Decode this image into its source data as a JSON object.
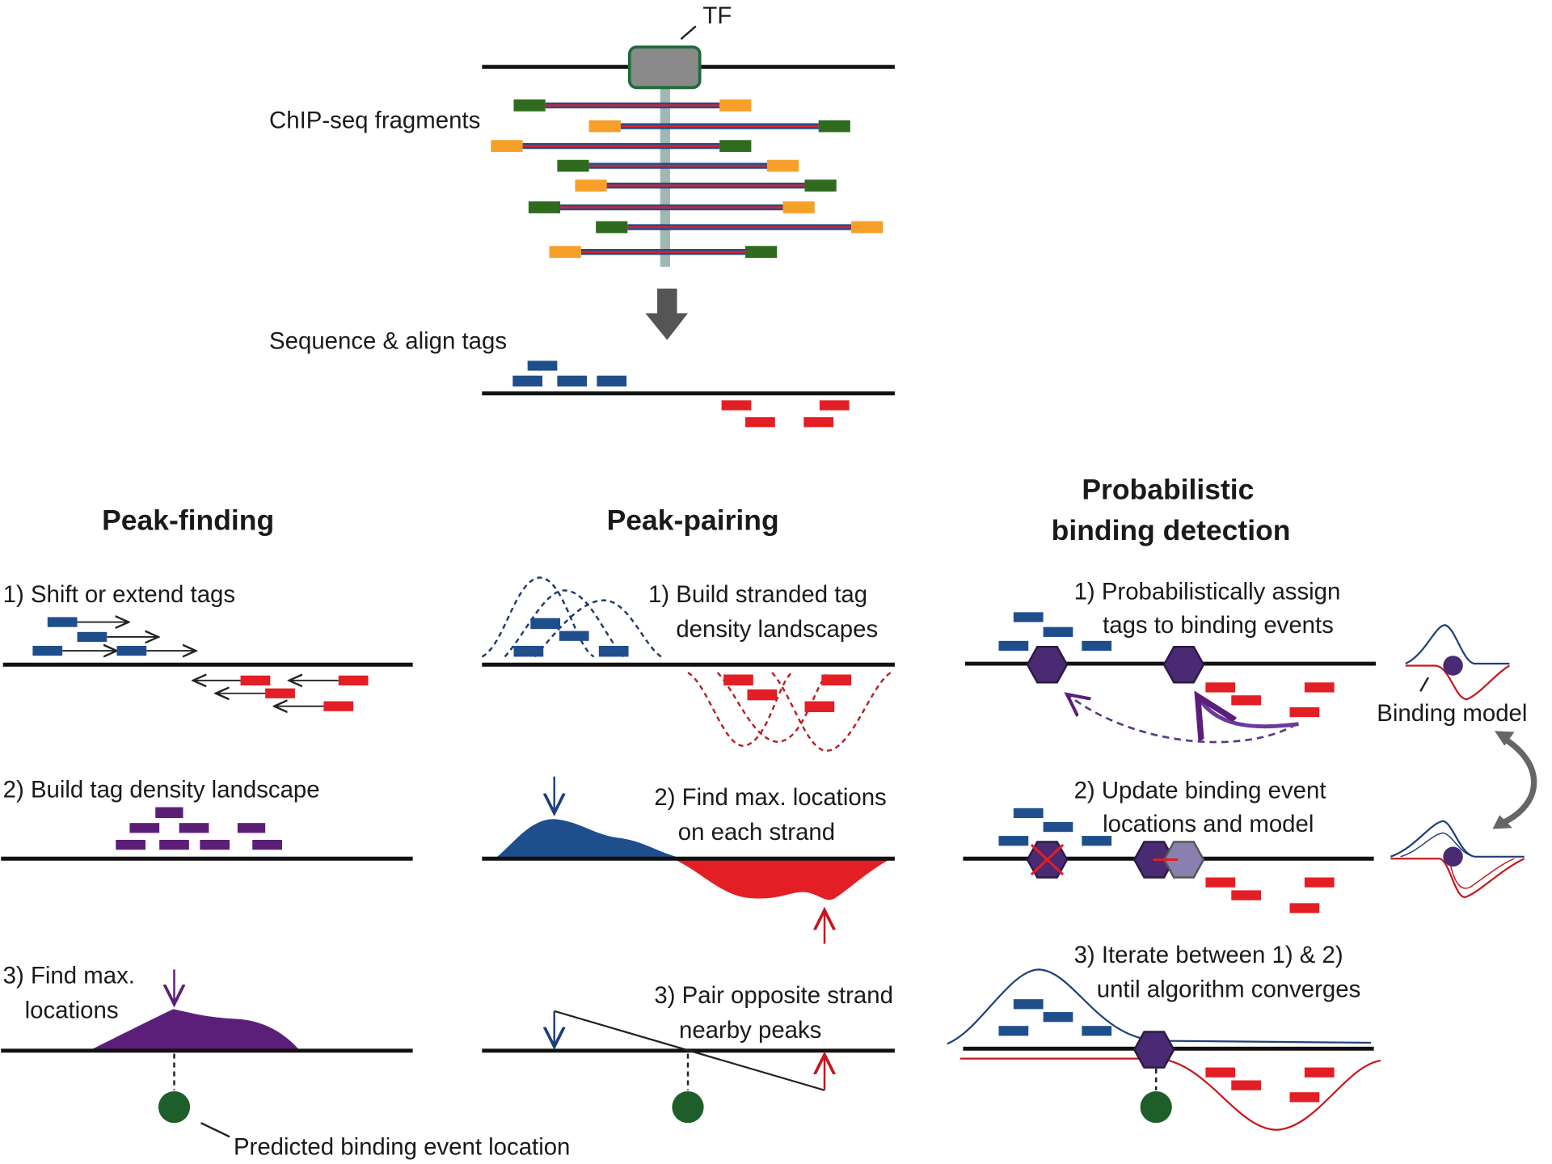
{
  "top": {
    "tf_label": "TF",
    "fragments_label": "ChIP-seq fragments",
    "sequence_label": "Sequence & align tags"
  },
  "peak_finding": {
    "title": "Peak-finding",
    "step1": "1) Shift or extend tags",
    "step2": "2) Build tag density landscape",
    "step3_line1": "3) Find max.",
    "step3_line2": "locations",
    "predicted_label": "Predicted binding event location"
  },
  "peak_pairing": {
    "title": "Peak-pairing",
    "step1_line1": "1) Build stranded tag",
    "step1_line2": "density landscapes",
    "step2_line1": "2) Find max. locations",
    "step2_line2": "on each strand",
    "step3_line1": "3) Pair opposite strand",
    "step3_line2": "nearby peaks"
  },
  "probabilistic": {
    "title_line1": "Probabilistic",
    "title_line2": "binding detection",
    "step1_line1": "1) Probabilistically assign",
    "step1_line2": "tags to binding events",
    "step2_line1": "2) Update binding event",
    "step2_line2": "locations and model",
    "step3_line1": "3) Iterate between 1) & 2)",
    "step3_line2": "until algorithm converges",
    "model_label": "Binding model"
  },
  "colors": {
    "forward_strand": "#1f4e8c",
    "reverse_strand": "#e31e24",
    "combined_density": "#5b1f7a",
    "binding_event": "#1e5e2a",
    "fragment_end_orange": "#f6a02a",
    "fragment_end_green": "#2f6b1e"
  }
}
